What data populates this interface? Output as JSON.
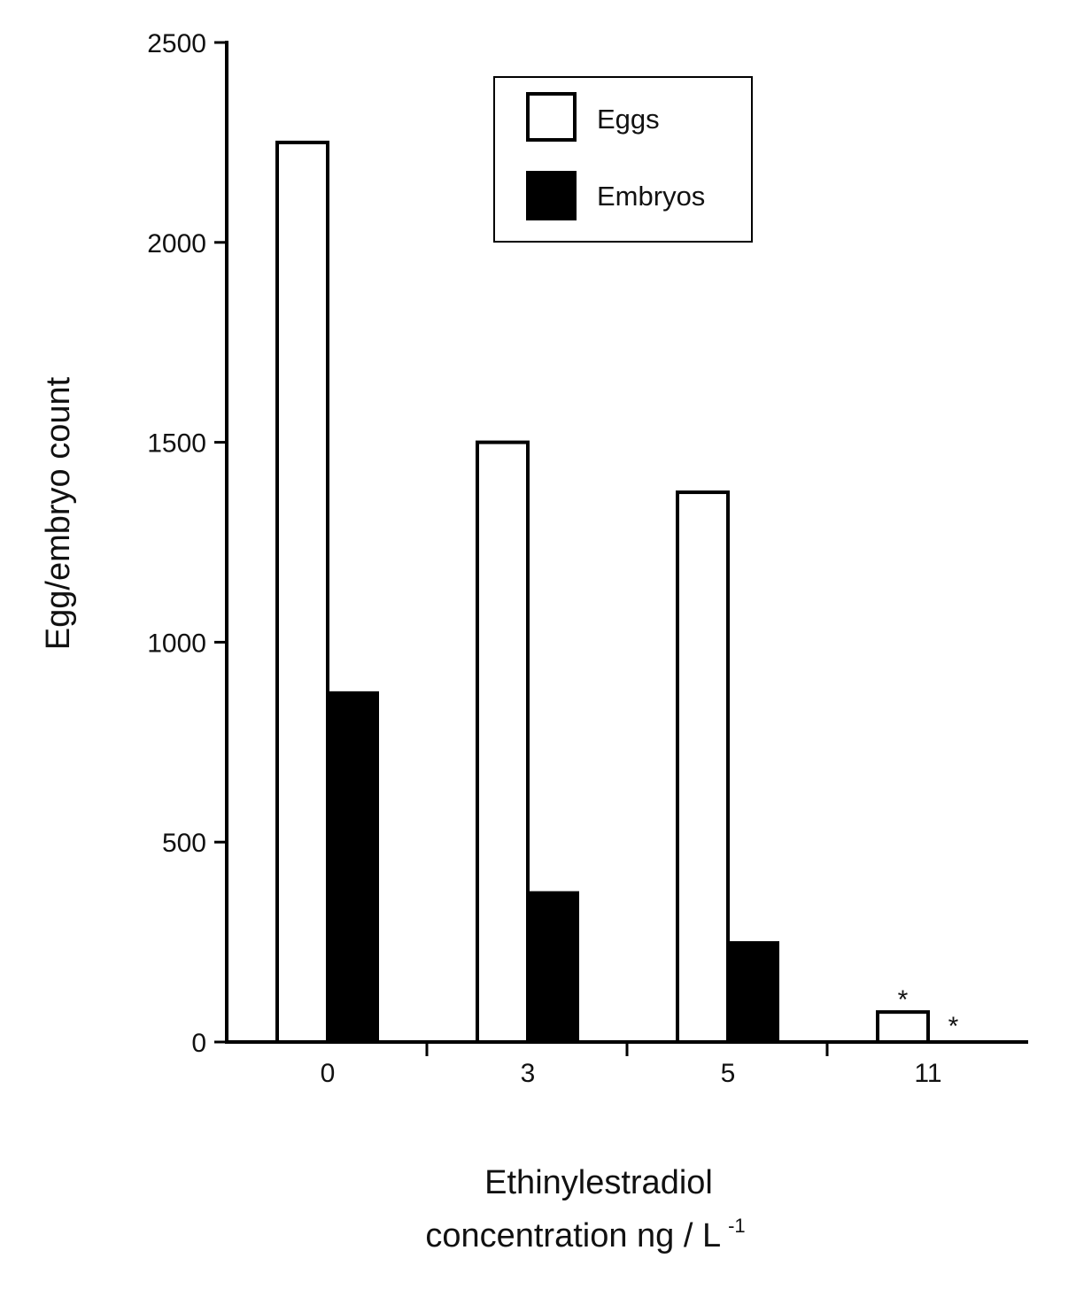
{
  "chart_data": {
    "type": "bar",
    "title": "",
    "xlabel_line1": "Ethinylestradiol",
    "xlabel_line2": "concentration ng / L",
    "xlabel_superscript": "-1",
    "ylabel": "Egg/embryo count",
    "categories": [
      "0",
      "3",
      "5",
      "11"
    ],
    "series": [
      {
        "name": "Eggs",
        "values": [
          2250,
          1500,
          1375,
          75
        ],
        "fill": "#ffffff",
        "stroke": "#000000"
      },
      {
        "name": "Embryos",
        "values": [
          875,
          375,
          250,
          0
        ],
        "fill": "#000000",
        "stroke": "#000000"
      }
    ],
    "ylim": [
      0,
      2500
    ],
    "yticks": [
      "0",
      "500",
      "1000",
      "1500",
      "2000",
      "2500"
    ],
    "grid": false,
    "legend_position": "top-right",
    "annotations": [
      {
        "category": "11",
        "series": "Eggs",
        "text": "*"
      },
      {
        "category": "11",
        "series": "Embryos",
        "text": "*"
      }
    ]
  }
}
